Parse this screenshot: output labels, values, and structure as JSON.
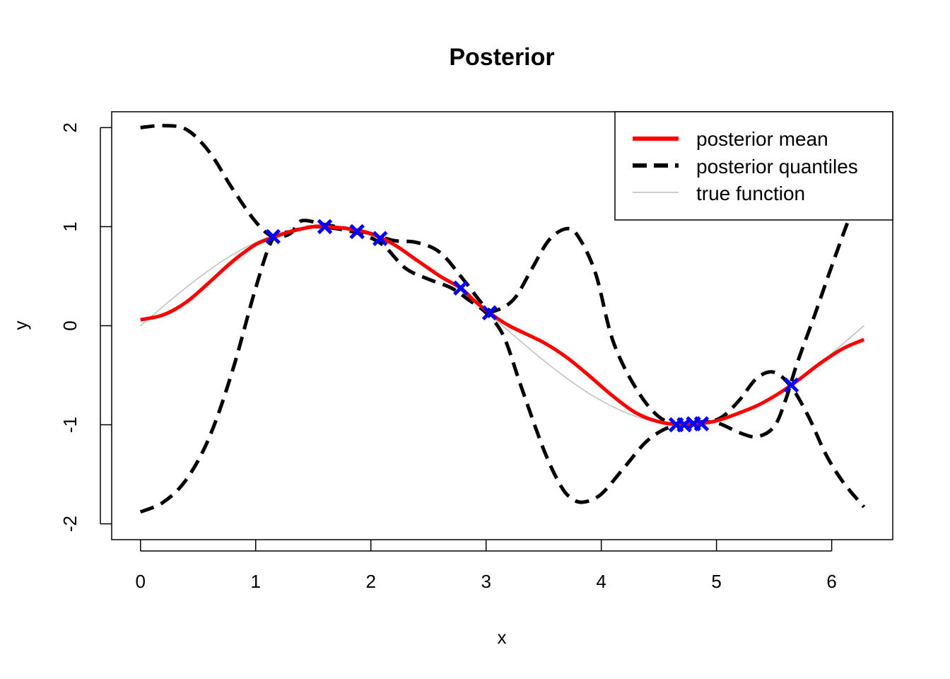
{
  "chart_data": {
    "type": "line",
    "title": "Posterior",
    "xlabel": "x",
    "ylabel": "y",
    "xlim": [
      -0.25,
      6.53
    ],
    "ylim": [
      -2.16,
      2.16
    ],
    "xticks": [
      0,
      1,
      2,
      3,
      4,
      5,
      6
    ],
    "yticks": [
      -2,
      -1,
      0,
      1,
      2
    ],
    "grid": false,
    "legend_position": "top-right",
    "colors": {
      "mean": "#ff0000",
      "quantiles": "#000000",
      "true": "#bebebe",
      "observations": "#0000ff"
    },
    "legend": [
      {
        "label": "posterior mean",
        "color": "#ff0000",
        "style": "solid-thick"
      },
      {
        "label": "posterior quantiles",
        "color": "#000000",
        "style": "dashed-thick"
      },
      {
        "label": "true function",
        "color": "#bebebe",
        "style": "solid-thin"
      }
    ],
    "series": [
      {
        "name": "true function",
        "points": [
          [
            0,
            0
          ],
          [
            0.25,
            0.247
          ],
          [
            0.5,
            0.479
          ],
          [
            0.75,
            0.682
          ],
          [
            1,
            0.841
          ],
          [
            1.25,
            0.949
          ],
          [
            1.5,
            0.997
          ],
          [
            1.75,
            0.984
          ],
          [
            2,
            0.909
          ],
          [
            2.25,
            0.778
          ],
          [
            2.5,
            0.598
          ],
          [
            2.75,
            0.382
          ],
          [
            3,
            0.141
          ],
          [
            3.25,
            -0.108
          ],
          [
            3.5,
            -0.351
          ],
          [
            3.75,
            -0.572
          ],
          [
            4,
            -0.757
          ],
          [
            4.25,
            -0.895
          ],
          [
            4.5,
            -0.978
          ],
          [
            4.75,
            -0.999
          ],
          [
            5,
            -0.959
          ],
          [
            5.25,
            -0.859
          ],
          [
            5.5,
            -0.706
          ],
          [
            5.75,
            -0.509
          ],
          [
            6,
            -0.279
          ],
          [
            6.28,
            0
          ]
        ]
      },
      {
        "name": "posterior mean",
        "points": [
          [
            0,
            0.06
          ],
          [
            0.2,
            0.11
          ],
          [
            0.4,
            0.24
          ],
          [
            0.6,
            0.44
          ],
          [
            0.8,
            0.65
          ],
          [
            1,
            0.82
          ],
          [
            1.15,
            0.89
          ],
          [
            1.3,
            0.95
          ],
          [
            1.5,
            1.0
          ],
          [
            1.6,
            1.0
          ],
          [
            1.8,
            0.98
          ],
          [
            2,
            0.93
          ],
          [
            2.2,
            0.82
          ],
          [
            2.4,
            0.66
          ],
          [
            2.6,
            0.5
          ],
          [
            2.78,
            0.38
          ],
          [
            2.9,
            0.25
          ],
          [
            3.03,
            0.13
          ],
          [
            3.2,
            0.0
          ],
          [
            3.5,
            -0.17
          ],
          [
            3.7,
            -0.32
          ],
          [
            3.9,
            -0.51
          ],
          [
            4.1,
            -0.71
          ],
          [
            4.3,
            -0.88
          ],
          [
            4.5,
            -0.97
          ],
          [
            4.7,
            -1.0
          ],
          [
            4.85,
            -0.99
          ],
          [
            5,
            -0.96
          ],
          [
            5.2,
            -0.88
          ],
          [
            5.4,
            -0.78
          ],
          [
            5.65,
            -0.6
          ],
          [
            5.9,
            -0.38
          ],
          [
            6.1,
            -0.23
          ],
          [
            6.28,
            -0.14
          ]
        ]
      },
      {
        "name": "posterior quantiles (upper)",
        "points": [
          [
            0,
            2.0
          ],
          [
            0.2,
            2.02
          ],
          [
            0.4,
            1.98
          ],
          [
            0.6,
            1.75
          ],
          [
            0.8,
            1.38
          ],
          [
            1,
            1.05
          ],
          [
            1.15,
            0.9
          ],
          [
            1.3,
            0.93
          ],
          [
            1.4,
            1.06
          ],
          [
            1.6,
            1.02
          ],
          [
            1.8,
            0.98
          ],
          [
            2,
            0.93
          ],
          [
            2.2,
            0.86
          ],
          [
            2.4,
            0.84
          ],
          [
            2.6,
            0.74
          ],
          [
            2.8,
            0.47
          ],
          [
            3,
            0.18
          ],
          [
            3.1,
            0.16
          ],
          [
            3.25,
            0.28
          ],
          [
            3.4,
            0.58
          ],
          [
            3.55,
            0.87
          ],
          [
            3.7,
            0.98
          ],
          [
            3.8,
            0.9
          ],
          [
            3.95,
            0.53
          ],
          [
            4.1,
            -0.15
          ],
          [
            4.3,
            -0.63
          ],
          [
            4.5,
            -0.92
          ],
          [
            4.7,
            -1.0
          ],
          [
            4.9,
            -0.98
          ],
          [
            5.05,
            -0.92
          ],
          [
            5.2,
            -0.75
          ],
          [
            5.35,
            -0.53
          ],
          [
            5.5,
            -0.47
          ],
          [
            5.65,
            -0.62
          ],
          [
            5.8,
            -0.92
          ],
          [
            5.95,
            -1.3
          ],
          [
            6.1,
            -1.58
          ],
          [
            6.28,
            -1.83
          ]
        ]
      },
      {
        "name": "posterior quantiles (lower)",
        "points": [
          [
            0,
            -1.88
          ],
          [
            0.2,
            -1.78
          ],
          [
            0.4,
            -1.55
          ],
          [
            0.6,
            -1.12
          ],
          [
            0.8,
            -0.45
          ],
          [
            1,
            0.38
          ],
          [
            1.15,
            0.88
          ],
          [
            1.3,
            0.95
          ],
          [
            1.5,
            1.0
          ],
          [
            1.7,
            0.98
          ],
          [
            1.9,
            0.93
          ],
          [
            2.1,
            0.82
          ],
          [
            2.3,
            0.58
          ],
          [
            2.5,
            0.47
          ],
          [
            2.7,
            0.38
          ],
          [
            2.85,
            0.26
          ],
          [
            3,
            0.13
          ],
          [
            3.15,
            -0.1
          ],
          [
            3.3,
            -0.6
          ],
          [
            3.5,
            -1.25
          ],
          [
            3.65,
            -1.62
          ],
          [
            3.75,
            -1.75
          ],
          [
            3.85,
            -1.78
          ],
          [
            4,
            -1.7
          ],
          [
            4.2,
            -1.43
          ],
          [
            4.4,
            -1.16
          ],
          [
            4.6,
            -1.02
          ],
          [
            4.8,
            -0.98
          ],
          [
            5,
            -0.98
          ],
          [
            5.2,
            -1.08
          ],
          [
            5.35,
            -1.12
          ],
          [
            5.5,
            -1.02
          ],
          [
            5.6,
            -0.75
          ],
          [
            5.7,
            -0.38
          ],
          [
            5.85,
            0.1
          ],
          [
            6,
            0.6
          ],
          [
            6.15,
            1.08
          ],
          [
            6.2,
            1.2
          ]
        ]
      }
    ],
    "observations": [
      {
        "x": 1.15,
        "y": 0.9
      },
      {
        "x": 1.6,
        "y": 1.0
      },
      {
        "x": 1.88,
        "y": 0.95
      },
      {
        "x": 2.08,
        "y": 0.88
      },
      {
        "x": 2.78,
        "y": 0.38
      },
      {
        "x": 3.03,
        "y": 0.13
      },
      {
        "x": 4.65,
        "y": -1.0
      },
      {
        "x": 4.72,
        "y": -1.0
      },
      {
        "x": 4.8,
        "y": -0.99
      },
      {
        "x": 4.87,
        "y": -0.99
      },
      {
        "x": 5.65,
        "y": -0.6
      }
    ]
  }
}
